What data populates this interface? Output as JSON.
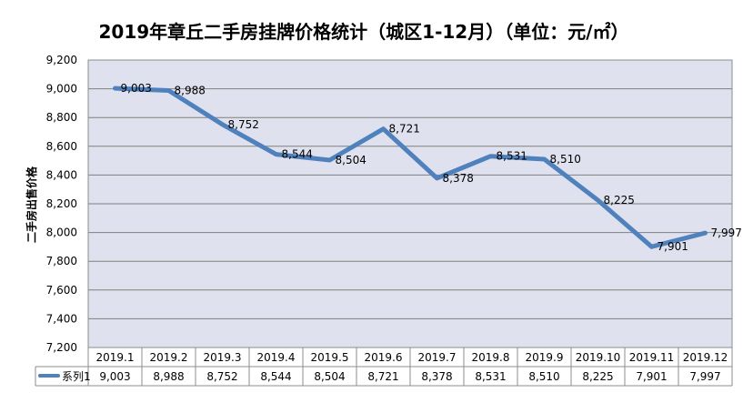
{
  "chart_data": {
    "type": "line",
    "title": "2019年章丘二手房挂牌价格统计（城区1-12月）（单位：元/㎡）",
    "xlabel": "",
    "ylabel": "二手房出售价格",
    "ylim": [
      7200,
      9200
    ],
    "ytick_step": 200,
    "yticks": [
      "7,200",
      "7,400",
      "7,600",
      "7,800",
      "8,000",
      "8,200",
      "8,400",
      "8,600",
      "8,800",
      "9,000",
      "9,200"
    ],
    "grid": true,
    "categories": [
      "2019.1",
      "2019.2",
      "2019.3",
      "2019.4",
      "2019.5",
      "2019.6",
      "2019.7",
      "2019.8",
      "2019.9",
      "2019.10",
      "2019.11",
      "2019.12"
    ],
    "series": [
      {
        "name": "系列1",
        "values": [
          9003,
          8988,
          8752,
          8544,
          8504,
          8721,
          8378,
          8531,
          8510,
          8225,
          7901,
          7997
        ],
        "labels": [
          "9,003",
          "8,988",
          "8,752",
          "8,544",
          "8,504",
          "8,721",
          "8,378",
          "8,531",
          "8,510",
          "8,225",
          "7,901",
          "7,997"
        ]
      }
    ],
    "data_table": true,
    "colors": {
      "plot_bg": "#dfe2ee",
      "line": "#4f81bd",
      "grid": "#7f7f7f",
      "border": "#8c8c8c"
    }
  }
}
